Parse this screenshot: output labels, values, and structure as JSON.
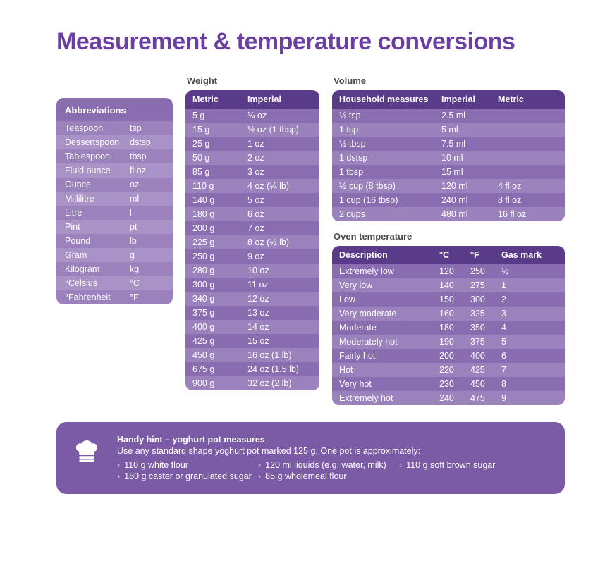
{
  "colors": {
    "title": "#6b3fa0",
    "header_bg": "#5a3b8a",
    "row_even": "#8a6cb0",
    "row_odd": "#9c82bd",
    "abbr_hdr_bg": "#8a6cb0",
    "abbr_row_even": "#9c82bd",
    "abbr_row_odd": "#a992c6",
    "hint_bg": "#7b5aa6",
    "text_white": "#ffffff",
    "section_label": "#4a4a4a"
  },
  "title": "Measurement & temperature conversions",
  "abbr": {
    "header": "Abbreviations",
    "rows": [
      [
        "Teaspoon",
        "tsp"
      ],
      [
        "Dessertspoon",
        "dstsp"
      ],
      [
        "Tablespoon",
        "tbsp"
      ],
      [
        "Fluid ounce",
        "fl oz"
      ],
      [
        "Ounce",
        "oz"
      ],
      [
        "Millilitre",
        "ml"
      ],
      [
        "Litre",
        "l"
      ],
      [
        "Pint",
        "pt"
      ],
      [
        "Pound",
        "lb"
      ],
      [
        "Gram",
        "g"
      ],
      [
        "Kilogram",
        "kg"
      ],
      [
        "°Celsius",
        "°C"
      ],
      [
        "°Fahrenheit",
        "°F"
      ]
    ]
  },
  "weight": {
    "label": "Weight",
    "columns": [
      "Metric",
      "Imperial"
    ],
    "rows": [
      [
        "5 g",
        "¼ oz"
      ],
      [
        "15 g",
        "½ oz (1 tbsp)"
      ],
      [
        "25 g",
        "1 oz"
      ],
      [
        "50 g",
        "2 oz"
      ],
      [
        "85 g",
        "3 oz"
      ],
      [
        "110 g",
        "4 oz (¼ lb)"
      ],
      [
        "140 g",
        "5 oz"
      ],
      [
        "180 g",
        "6 oz"
      ],
      [
        "200 g",
        "7 oz"
      ],
      [
        "225 g",
        "8 oz (½ lb)"
      ],
      [
        "250 g",
        "9 oz"
      ],
      [
        "280 g",
        "10 oz"
      ],
      [
        "300 g",
        "11 oz"
      ],
      [
        "340 g",
        "12 oz"
      ],
      [
        "375 g",
        "13 oz"
      ],
      [
        "400 g",
        "14 oz"
      ],
      [
        "425 g",
        "15 oz"
      ],
      [
        "450 g",
        "16 oz (1 lb)"
      ],
      [
        "675 g",
        "24 oz (1.5 lb)"
      ],
      [
        "900 g",
        "32 oz (2 lb)"
      ]
    ]
  },
  "volume": {
    "label": "Volume",
    "columns": [
      "Household measures",
      "Imperial",
      "Metric"
    ],
    "rows": [
      [
        "½ tsp",
        "2.5 ml",
        ""
      ],
      [
        "1 tsp",
        "5 ml",
        ""
      ],
      [
        "½ tbsp",
        "7.5 ml",
        ""
      ],
      [
        "1 dstsp",
        "10 ml",
        ""
      ],
      [
        "1 tbsp",
        "15 ml",
        ""
      ],
      [
        "½ cup (8 tbsp)",
        "120 ml",
        "4 fl oz"
      ],
      [
        "1 cup (16 tbsp)",
        "240 ml",
        "8 fl oz"
      ],
      [
        "2 cups",
        "480 ml",
        "16 fl oz"
      ]
    ]
  },
  "oven": {
    "label": "Oven temperature",
    "columns": [
      "Description",
      "°C",
      "°F",
      "Gas mark"
    ],
    "rows": [
      [
        "Extremely low",
        "120",
        "250",
        "½"
      ],
      [
        "Very low",
        "140",
        "275",
        "1"
      ],
      [
        "Low",
        "150",
        "300",
        "2"
      ],
      [
        "Very moderate",
        "160",
        "325",
        "3"
      ],
      [
        "Moderate",
        "180",
        "350",
        "4"
      ],
      [
        "Moderately hot",
        "190",
        "375",
        "5"
      ],
      [
        "Fairly hot",
        "200",
        "400",
        "6"
      ],
      [
        "Hot",
        "220",
        "425",
        "7"
      ],
      [
        "Very hot",
        "230",
        "450",
        "8"
      ],
      [
        "Extremely hot",
        "240",
        "475",
        "9"
      ]
    ]
  },
  "hint": {
    "title": "Handy hint – yoghurt pot measures",
    "subtitle": "Use any standard shape yoghurt pot marked 125 g. One pot is approximately:",
    "items": [
      "110 g white flour",
      "120 ml liquids (e.g. water, milk)",
      "110 g soft brown sugar",
      "180 g caster or granulated sugar",
      "85 g wholemeal flour"
    ]
  }
}
